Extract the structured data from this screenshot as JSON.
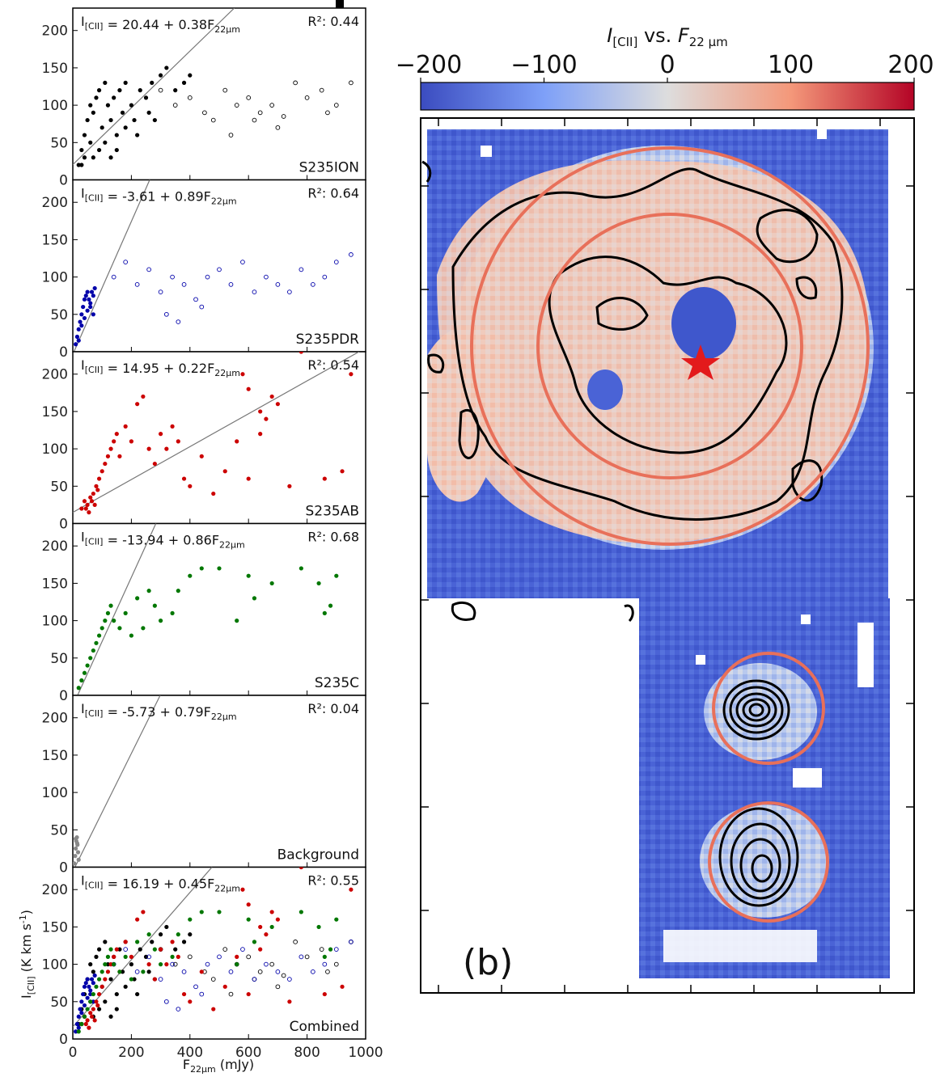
{
  "chart_data": [
    {
      "type": "scatter",
      "panel": "S235ION",
      "equation": "I[CII] = 20.44 + 0.38F22μm",
      "r2_label": "R²: 0.44",
      "intercept": 20.44,
      "slope": 0.38,
      "color": "#000000",
      "xlim": [
        0,
        1000
      ],
      "ylim": [
        0,
        230
      ],
      "yticks": [
        "0",
        "50",
        "100",
        "150",
        "200"
      ],
      "filled_points": [
        [
          20,
          20
        ],
        [
          30,
          40
        ],
        [
          40,
          60
        ],
        [
          50,
          80
        ],
        [
          60,
          100
        ],
        [
          70,
          90
        ],
        [
          80,
          110
        ],
        [
          90,
          120
        ],
        [
          100,
          70
        ],
        [
          110,
          130
        ],
        [
          120,
          100
        ],
        [
          130,
          80
        ],
        [
          140,
          110
        ],
        [
          150,
          60
        ],
        [
          160,
          120
        ],
        [
          170,
          90
        ],
        [
          180,
          130
        ],
        [
          200,
          100
        ],
        [
          210,
          80
        ],
        [
          230,
          120
        ],
        [
          250,
          110
        ],
        [
          270,
          130
        ],
        [
          300,
          140
        ],
        [
          320,
          150
        ],
        [
          350,
          120
        ],
        [
          380,
          130
        ],
        [
          400,
          140
        ],
        [
          30,
          20
        ],
        [
          40,
          30
        ],
        [
          60,
          50
        ],
        [
          70,
          30
        ],
        [
          90,
          40
        ],
        [
          110,
          50
        ],
        [
          130,
          30
        ],
        [
          150,
          40
        ],
        [
          180,
          70
        ],
        [
          220,
          60
        ],
        [
          260,
          90
        ],
        [
          280,
          80
        ]
      ],
      "open_points": [
        [
          300,
          120
        ],
        [
          350,
          100
        ],
        [
          400,
          110
        ],
        [
          450,
          90
        ],
        [
          480,
          80
        ],
        [
          520,
          120
        ],
        [
          560,
          100
        ],
        [
          600,
          110
        ],
        [
          640,
          90
        ],
        [
          680,
          100
        ],
        [
          720,
          85
        ],
        [
          760,
          130
        ],
        [
          800,
          110
        ],
        [
          850,
          120
        ],
        [
          900,
          100
        ],
        [
          950,
          130
        ],
        [
          540,
          60
        ],
        [
          620,
          80
        ],
        [
          700,
          70
        ],
        [
          870,
          90
        ]
      ]
    },
    {
      "type": "scatter",
      "panel": "S235PDR",
      "equation": "I[CII] = -3.61 + 0.89F22μm",
      "r2_label": "R²: 0.64",
      "intercept": -3.61,
      "slope": 0.89,
      "color": "#0000aa",
      "xlim": [
        0,
        1000
      ],
      "ylim": [
        0,
        230
      ],
      "yticks": [
        "0",
        "50",
        "100",
        "150",
        "200"
      ],
      "filled_points": [
        [
          10,
          10
        ],
        [
          15,
          20
        ],
        [
          20,
          30
        ],
        [
          25,
          40
        ],
        [
          30,
          50
        ],
        [
          35,
          60
        ],
        [
          40,
          70
        ],
        [
          45,
          75
        ],
        [
          50,
          80
        ],
        [
          55,
          70
        ],
        [
          60,
          60
        ],
        [
          65,
          80
        ],
        [
          70,
          75
        ],
        [
          75,
          85
        ],
        [
          20,
          15
        ],
        [
          30,
          35
        ],
        [
          40,
          45
        ],
        [
          50,
          55
        ],
        [
          60,
          65
        ],
        [
          70,
          50
        ]
      ],
      "open_points": [
        [
          140,
          100
        ],
        [
          180,
          120
        ],
        [
          220,
          90
        ],
        [
          260,
          110
        ],
        [
          300,
          80
        ],
        [
          340,
          100
        ],
        [
          380,
          90
        ],
        [
          420,
          70
        ],
        [
          460,
          100
        ],
        [
          500,
          110
        ],
        [
          540,
          90
        ],
        [
          580,
          120
        ],
        [
          620,
          80
        ],
        [
          660,
          100
        ],
        [
          700,
          90
        ],
        [
          740,
          80
        ],
        [
          780,
          110
        ],
        [
          820,
          90
        ],
        [
          860,
          100
        ],
        [
          900,
          120
        ],
        [
          950,
          130
        ],
        [
          320,
          50
        ],
        [
          360,
          40
        ],
        [
          440,
          60
        ]
      ]
    },
    {
      "type": "scatter",
      "panel": "S235AB",
      "equation": "I[CII] = 14.95 + 0.22F22μm",
      "r2_label": "R²: 0.54",
      "intercept": 14.95,
      "slope": 0.22,
      "color": "#cc0000",
      "xlim": [
        0,
        1000
      ],
      "ylim": [
        0,
        230
      ],
      "yticks": [
        "0",
        "50",
        "100",
        "150",
        "200"
      ],
      "filled_points": [
        [
          30,
          20
        ],
        [
          40,
          30
        ],
        [
          50,
          25
        ],
        [
          60,
          35
        ],
        [
          70,
          40
        ],
        [
          80,
          50
        ],
        [
          90,
          60
        ],
        [
          100,
          70
        ],
        [
          110,
          80
        ],
        [
          120,
          90
        ],
        [
          130,
          100
        ],
        [
          140,
          110
        ],
        [
          150,
          120
        ],
        [
          160,
          90
        ],
        [
          180,
          130
        ],
        [
          200,
          110
        ],
        [
          220,
          160
        ],
        [
          240,
          170
        ],
        [
          260,
          100
        ],
        [
          280,
          80
        ],
        [
          300,
          120
        ],
        [
          320,
          100
        ],
        [
          340,
          130
        ],
        [
          360,
          110
        ],
        [
          380,
          60
        ],
        [
          400,
          50
        ],
        [
          440,
          90
        ],
        [
          480,
          40
        ],
        [
          520,
          70
        ],
        [
          560,
          110
        ],
        [
          600,
          60
        ],
        [
          640,
          120
        ],
        [
          680,
          170
        ],
        [
          700,
          160
        ],
        [
          740,
          50
        ],
        [
          780,
          230
        ],
        [
          860,
          60
        ],
        [
          920,
          70
        ],
        [
          950,
          200
        ],
        [
          580,
          200
        ],
        [
          600,
          180
        ],
        [
          640,
          150
        ],
        [
          660,
          140
        ],
        [
          45,
          20
        ],
        [
          55,
          15
        ],
        [
          65,
          30
        ],
        [
          75,
          25
        ],
        [
          85,
          45
        ]
      ]
    },
    {
      "type": "scatter",
      "panel": "S235C",
      "equation": "I[CII] = -13.94 + 0.86F22μm",
      "r2_label": "R²: 0.68",
      "intercept": -13.94,
      "slope": 0.86,
      "color": "#007700",
      "xlim": [
        0,
        1000
      ],
      "ylim": [
        0,
        230
      ],
      "yticks": [
        "0",
        "50",
        "100",
        "150",
        "200"
      ],
      "filled_points": [
        [
          20,
          10
        ],
        [
          30,
          20
        ],
        [
          40,
          30
        ],
        [
          50,
          40
        ],
        [
          60,
          50
        ],
        [
          70,
          60
        ],
        [
          80,
          70
        ],
        [
          90,
          80
        ],
        [
          100,
          90
        ],
        [
          110,
          100
        ],
        [
          120,
          110
        ],
        [
          130,
          120
        ],
        [
          140,
          100
        ],
        [
          160,
          90
        ],
        [
          180,
          110
        ],
        [
          200,
          80
        ],
        [
          220,
          130
        ],
        [
          240,
          90
        ],
        [
          260,
          140
        ],
        [
          280,
          120
        ],
        [
          300,
          100
        ],
        [
          340,
          110
        ],
        [
          360,
          140
        ],
        [
          400,
          160
        ],
        [
          440,
          170
        ],
        [
          500,
          170
        ],
        [
          560,
          100
        ],
        [
          600,
          160
        ],
        [
          620,
          130
        ],
        [
          680,
          150
        ],
        [
          780,
          170
        ],
        [
          840,
          150
        ],
        [
          900,
          160
        ],
        [
          880,
          120
        ],
        [
          860,
          110
        ]
      ]
    },
    {
      "type": "scatter",
      "panel": "Background",
      "equation": "I[CII] = -5.73 + 0.79F22μm",
      "r2_label": "R²: 0.04",
      "intercept": -5.73,
      "slope": 0.79,
      "color": "#888888",
      "xlim": [
        0,
        1000
      ],
      "ylim": [
        0,
        230
      ],
      "yticks": [
        "0",
        "50",
        "100",
        "150",
        "200"
      ],
      "filled_points": [
        [
          5,
          5
        ],
        [
          8,
          15
        ],
        [
          10,
          25
        ],
        [
          12,
          35
        ],
        [
          14,
          40
        ],
        [
          16,
          30
        ],
        [
          18,
          20
        ],
        [
          20,
          10
        ],
        [
          10,
          38
        ],
        [
          15,
          32
        ]
      ]
    },
    {
      "type": "scatter",
      "panel": "Combined",
      "equation": "I[CII] = 16.19 + 0.45F22μm",
      "r2_label": "R²: 0.55",
      "intercept": 16.19,
      "slope": 0.45,
      "color": "#000000",
      "xlim": [
        0,
        1000
      ],
      "ylim": [
        0,
        230
      ],
      "yticks": [
        "0",
        "50",
        "100",
        "150",
        "200"
      ],
      "xticks": [
        "0",
        "200",
        "400",
        "600",
        "800",
        "1000"
      ],
      "xlabel": "F22μm (mJy)",
      "ylabel": "I[CII] (K km s-1)"
    },
    {
      "type": "heatmap",
      "panel_label": "(b)",
      "colorbar_title": "I[CII] vs. F22μm",
      "colorbar_ticks": [
        "−200",
        "−100",
        "0",
        "100",
        "200"
      ],
      "colorbar_range": [
        -200,
        200
      ],
      "colormap": [
        "#3b4cc0",
        "#dddddd",
        "#b40426"
      ]
    }
  ]
}
